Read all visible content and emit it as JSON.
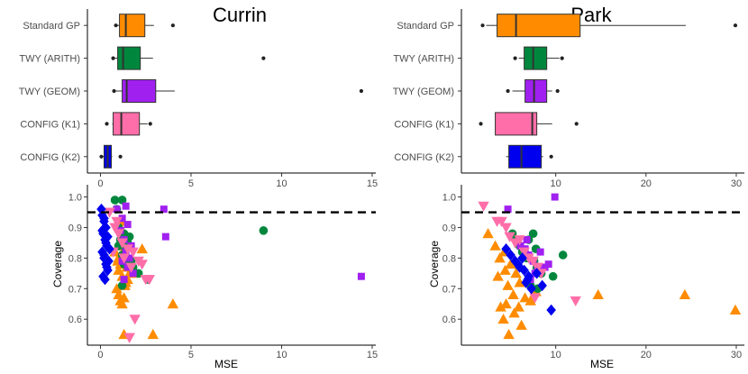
{
  "colors": {
    "Standard GP": "#ff8c00",
    "TWY (ARITH)": "#00873d",
    "TWY (GEOM)": "#a020f0",
    "CONFIG (K1)": "#ff6ea8",
    "CONFIG (K2)": "#0000ee"
  },
  "chart_data": [
    {
      "type": "box",
      "title": "Currin",
      "xlabel": "",
      "xlim": [
        -0.72,
        15.2
      ],
      "xticks": [
        0,
        5,
        10,
        15
      ],
      "categories": [
        "Standard GP",
        "TWY (ARITH)",
        "TWY (GEOM)",
        "CONFIG (K1)",
        "CONFIG (K2)"
      ],
      "boxes": [
        {
          "name": "Standard GP",
          "whisker_low": 0.9,
          "q1": 1.05,
          "median": 1.4,
          "q3": 2.45,
          "whisker_high": 2.95,
          "outliers": [
            0.85,
            4.0
          ]
        },
        {
          "name": "TWY (ARITH)",
          "whisker_low": 0.8,
          "q1": 0.95,
          "median": 1.25,
          "q3": 2.2,
          "whisker_high": 2.9,
          "outliers": [
            0.7,
            9.0
          ]
        },
        {
          "name": "TWY (GEOM)",
          "whisker_low": 0.8,
          "q1": 1.2,
          "median": 1.45,
          "q3": 3.05,
          "whisker_high": 4.1,
          "outliers": [
            0.75,
            14.4
          ]
        },
        {
          "name": "CONFIG (K1)",
          "whisker_low": 0.65,
          "q1": 0.7,
          "median": 1.15,
          "q3": 2.15,
          "whisker_high": 2.6,
          "outliers": [
            0.35,
            2.75
          ]
        },
        {
          "name": "CONFIG (K2)",
          "whisker_low": 0.1,
          "q1": 0.2,
          "median": 0.4,
          "q3": 0.6,
          "whisker_high": 0.65,
          "outliers": [
            0.05,
            1.1
          ]
        }
      ]
    },
    {
      "type": "box",
      "title": "Park",
      "xlabel": "",
      "xlim": [
        -0.45,
        30.9
      ],
      "xticks": [
        10,
        20,
        30
      ],
      "categories": [
        "Standard GP",
        "TWY (ARITH)",
        "TWY (GEOM)",
        "CONFIG (K1)",
        "CONFIG (K2)"
      ],
      "boxes": [
        {
          "name": "Standard GP",
          "whisker_low": 2.3,
          "q1": 3.5,
          "median": 5.6,
          "q3": 12.7,
          "whisker_high": 24.4,
          "outliers": [
            1.9,
            29.9
          ]
        },
        {
          "name": "TWY (ARITH)",
          "whisker_low": 5.9,
          "q1": 6.5,
          "median": 7.5,
          "q3": 9.0,
          "whisker_high": 10.4,
          "outliers": [
            5.5,
            10.7
          ]
        },
        {
          "name": "TWY (GEOM)",
          "whisker_low": 5.2,
          "q1": 6.6,
          "median": 7.6,
          "q3": 9.0,
          "whisker_high": 9.6,
          "outliers": [
            4.7,
            10.2
          ]
        },
        {
          "name": "CONFIG (K1)",
          "whisker_low": 3.3,
          "q1": 3.3,
          "median": 7.4,
          "q3": 7.9,
          "whisker_high": 9.6,
          "outliers": [
            1.7,
            12.3
          ]
        },
        {
          "name": "CONFIG (K2)",
          "whisker_low": 4.5,
          "q1": 4.8,
          "median": 6.2,
          "q3": 8.4,
          "whisker_high": 8.6,
          "outliers": [
            9.5
          ]
        }
      ]
    },
    {
      "type": "scatter",
      "title": "",
      "xlabel": "MSE",
      "ylabel": "Coverage",
      "xlim": [
        -0.72,
        15.2
      ],
      "ylim": [
        0.515,
        1.04
      ],
      "xticks": [
        0,
        5,
        10,
        15
      ],
      "yticks": [
        0.6,
        0.7,
        0.8,
        0.9,
        1.0
      ],
      "reference_line": 0.95,
      "series": [
        {
          "name": "Standard GP",
          "marker": "triangle-up",
          "x": [
            0.8,
            1.0,
            1.1,
            1.0,
            1.2,
            1.4,
            0.9,
            1.0,
            1.3,
            1.2,
            1.1,
            1.35,
            1.5,
            1.6,
            1.45,
            0.95,
            1.15,
            1.25,
            1.4,
            1.3,
            1.1,
            1.2,
            1.9,
            2.3,
            2.9,
            4.0,
            1.3
          ],
          "y": [
            0.82,
            0.8,
            0.78,
            0.76,
            0.74,
            0.72,
            0.7,
            0.68,
            0.67,
            0.65,
            0.66,
            0.71,
            0.73,
            0.75,
            0.77,
            0.79,
            0.81,
            0.84,
            0.86,
            0.88,
            0.9,
            0.92,
            0.75,
            0.83,
            0.55,
            0.65,
            0.55
          ]
        },
        {
          "name": "TWY (ARITH)",
          "marker": "circle",
          "x": [
            0.8,
            1.2,
            0.9,
            1.0,
            1.3,
            1.1,
            1.6,
            1.5,
            1.4,
            1.2,
            1.8,
            1.7,
            2.1,
            2.6,
            1.3,
            1.2,
            9.0,
            1.0
          ],
          "y": [
            0.99,
            0.99,
            0.96,
            0.9,
            0.88,
            0.86,
            0.87,
            0.85,
            0.83,
            0.81,
            0.77,
            0.79,
            0.75,
            0.73,
            0.78,
            0.71,
            0.89,
            0.84
          ]
        },
        {
          "name": "TWY (GEOM)",
          "marker": "square",
          "x": [
            0.9,
            1.4,
            1.2,
            1.5,
            1.1,
            1.3,
            1.7,
            1.4,
            1.6,
            1.2,
            1.5,
            1.8,
            1.3,
            3.5,
            3.6,
            14.4
          ],
          "y": [
            0.96,
            0.97,
            0.93,
            0.91,
            0.89,
            0.86,
            0.84,
            0.82,
            0.8,
            0.79,
            0.77,
            0.75,
            0.73,
            0.96,
            0.87,
            0.74
          ]
        },
        {
          "name": "CONFIG (K1)",
          "marker": "triangle-down",
          "x": [
            0.5,
            0.9,
            0.8,
            1.0,
            1.2,
            0.7,
            1.3,
            1.5,
            1.8,
            2.1,
            2.5,
            1.7,
            2.7,
            1.6,
            1.9,
            2.3,
            1.6
          ],
          "y": [
            0.95,
            0.92,
            0.9,
            0.88,
            0.85,
            0.82,
            0.8,
            0.83,
            0.82,
            0.79,
            0.73,
            0.77,
            0.73,
            0.54,
            0.6,
            0.78,
            0.54
          ]
        },
        {
          "name": "CONFIG (K2)",
          "marker": "diamond",
          "x": [
            0.05,
            0.1,
            0.2,
            0.3,
            0.15,
            0.25,
            0.35,
            0.1,
            0.2,
            0.3,
            0.4,
            0.15,
            0.25,
            0.35,
            0.45,
            0.2,
            0.5,
            0.3,
            0.4,
            0.1,
            0.2
          ],
          "y": [
            0.96,
            0.94,
            0.92,
            0.9,
            0.88,
            0.86,
            0.84,
            0.82,
            0.8,
            0.78,
            0.76,
            0.74,
            0.73,
            0.77,
            0.79,
            0.81,
            0.83,
            0.85,
            0.87,
            0.89,
            0.93
          ]
        }
      ]
    },
    {
      "type": "scatter",
      "title": "",
      "xlabel": "MSE",
      "ylabel": "Coverage",
      "xlim": [
        -0.45,
        30.9
      ],
      "ylim": [
        0.515,
        1.04
      ],
      "xticks": [
        10,
        20,
        30
      ],
      "yticks": [
        0.6,
        0.7,
        0.8,
        0.9,
        1.0
      ],
      "reference_line": 0.95,
      "series": [
        {
          "name": "Standard GP",
          "marker": "triangle-up",
          "x": [
            2.5,
            3.3,
            4.3,
            3.8,
            5.0,
            4.4,
            5.6,
            6.0,
            4.7,
            3.6,
            5.3,
            6.6,
            4.5,
            5.9,
            7.2,
            5.4,
            4.2,
            3.9,
            7.8,
            6.2,
            4.8,
            14.7,
            24.3,
            29.9
          ],
          "y": [
            0.88,
            0.84,
            0.82,
            0.8,
            0.78,
            0.76,
            0.75,
            0.72,
            0.71,
            0.74,
            0.68,
            0.67,
            0.65,
            0.64,
            0.66,
            0.62,
            0.6,
            0.64,
            0.69,
            0.58,
            0.55,
            0.68,
            0.68,
            0.63
          ]
        },
        {
          "name": "TWY (ARITH)",
          "marker": "circle",
          "x": [
            5.2,
            5.6,
            6.0,
            7.5,
            6.3,
            6.8,
            7.0,
            7.6,
            7.9,
            8.4,
            8.0,
            9.7,
            10.8,
            7.8,
            7.2
          ],
          "y": [
            0.88,
            0.86,
            0.84,
            0.88,
            0.82,
            0.8,
            0.86,
            0.79,
            0.77,
            0.75,
            0.7,
            0.74,
            0.81,
            0.83,
            0.71
          ]
        },
        {
          "name": "TWY (GEOM)",
          "marker": "square",
          "x": [
            4.7,
            6.1,
            6.6,
            7.0,
            7.5,
            8.0,
            8.3,
            7.7,
            8.8,
            9.2,
            7.2,
            6.8,
            9.9
          ],
          "y": [
            0.96,
            0.84,
            0.83,
            0.81,
            0.79,
            0.77,
            0.82,
            0.75,
            0.77,
            0.78,
            0.73,
            0.86,
            1.0
          ]
        },
        {
          "name": "CONFIG (K1)",
          "marker": "triangle-down",
          "x": [
            2.0,
            3.5,
            4.0,
            4.5,
            4.9,
            5.5,
            6.0,
            6.5,
            7.0,
            7.5,
            8.0,
            8.4,
            12.2,
            7.7
          ],
          "y": [
            0.97,
            0.92,
            0.92,
            0.9,
            0.87,
            0.85,
            0.86,
            0.82,
            0.8,
            0.79,
            0.77,
            0.75,
            0.66,
            0.67
          ]
        },
        {
          "name": "CONFIG (K2)",
          "marker": "diamond",
          "x": [
            4.5,
            5.0,
            5.5,
            6.0,
            6.5,
            7.0,
            5.8,
            6.3,
            6.7,
            7.3,
            8.5,
            9.5,
            6.9,
            7.9
          ],
          "y": [
            0.83,
            0.81,
            0.79,
            0.77,
            0.76,
            0.74,
            0.78,
            0.8,
            0.72,
            0.7,
            0.71,
            0.63,
            0.73,
            0.75
          ]
        }
      ]
    }
  ]
}
